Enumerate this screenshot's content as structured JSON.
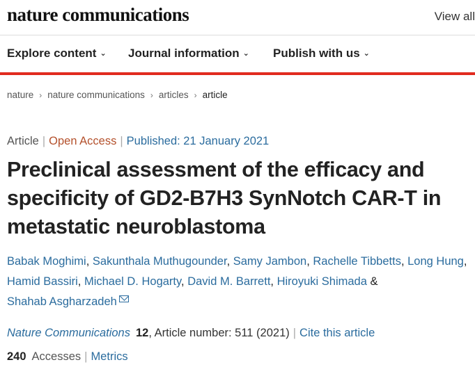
{
  "header": {
    "logo": "nature communications",
    "view_all": "View all"
  },
  "nav": {
    "items": [
      {
        "label": "Explore content"
      },
      {
        "label": "Journal information"
      },
      {
        "label": "Publish with us"
      }
    ]
  },
  "breadcrumb": [
    "nature",
    "nature communications",
    "articles",
    "article"
  ],
  "article": {
    "type": "Article",
    "access": "Open Access",
    "published": "Published: 21 January 2021",
    "title": "Preclinical assessment of the efficacy and specificity of GD2-B7H3 SynNotch CAR-T in metastatic neuroblastoma",
    "authors": [
      "Babak Moghimi",
      "Sakunthala Muthugounder",
      "Samy Jambon",
      "Rachelle Tibbetts",
      "Long Hung",
      "Hamid Bassiri",
      "Michael D. Hogarty",
      "David M. Barrett",
      "Hiroyuki Shimada",
      "Shahab Asgharzadeh"
    ],
    "journal": "Nature Communications",
    "volume": "12",
    "article_number": ", Article number: 511 (2021)",
    "cite_label": "Cite this article",
    "accesses_count": "240",
    "accesses_label": "Accesses",
    "metrics_label": "Metrics"
  },
  "colors": {
    "link": "#2b6c9e",
    "open_access": "#b4512c",
    "accent_bar": "#e12b1f"
  },
  "icons": {
    "nav_chevron": "chevron-down-icon",
    "breadcrumb_separator": "chevron-right-icon",
    "corresponding_author": "envelope-icon"
  }
}
